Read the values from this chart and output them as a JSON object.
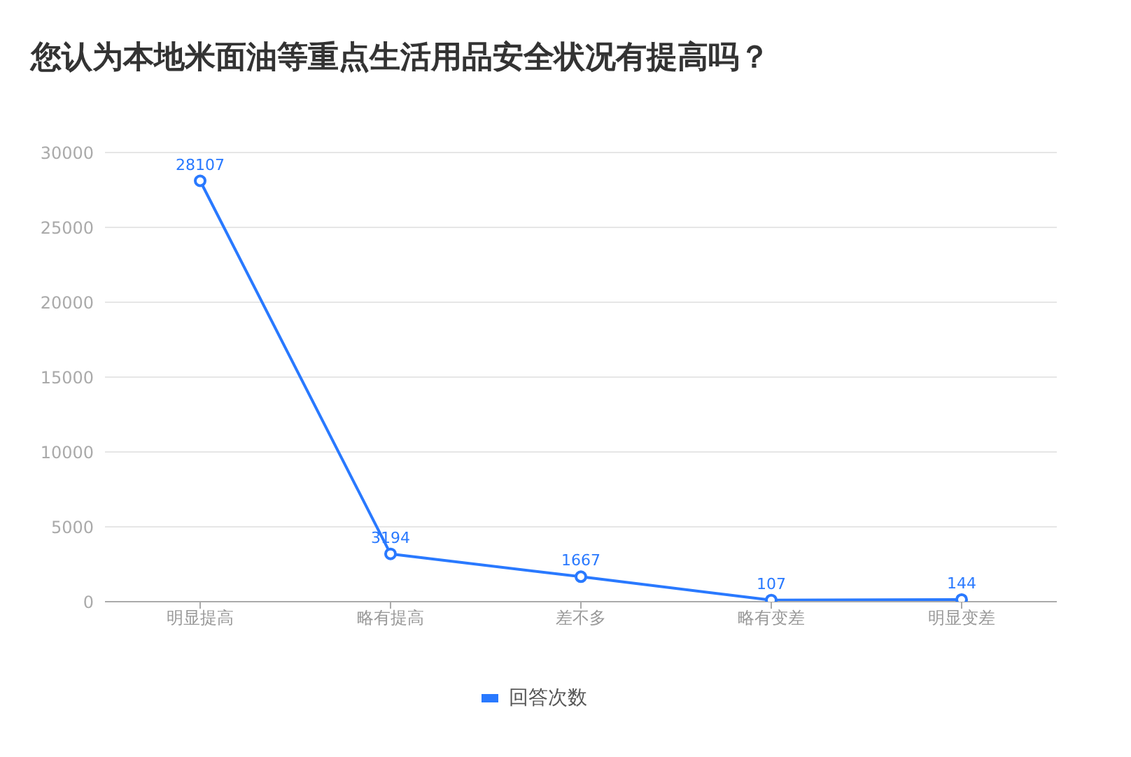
{
  "chart_data": {
    "type": "line",
    "title": "您认为本地米面油等重点生活用品安全状况有提高吗？",
    "categories": [
      "明显提高",
      "略有提高",
      "差不多",
      "略有变差",
      "明显变差"
    ],
    "series": [
      {
        "name": "回答次数",
        "color": "#2979ff",
        "values": [
          28107,
          3194,
          1667,
          107,
          144
        ]
      }
    ],
    "ylim": [
      0,
      30000
    ],
    "yticks": [
      0,
      5000,
      10000,
      15000,
      20000,
      25000,
      30000
    ],
    "grid": "y",
    "legend": "bottom",
    "marker": "circle",
    "line_style": "solid",
    "data_labels": true
  }
}
